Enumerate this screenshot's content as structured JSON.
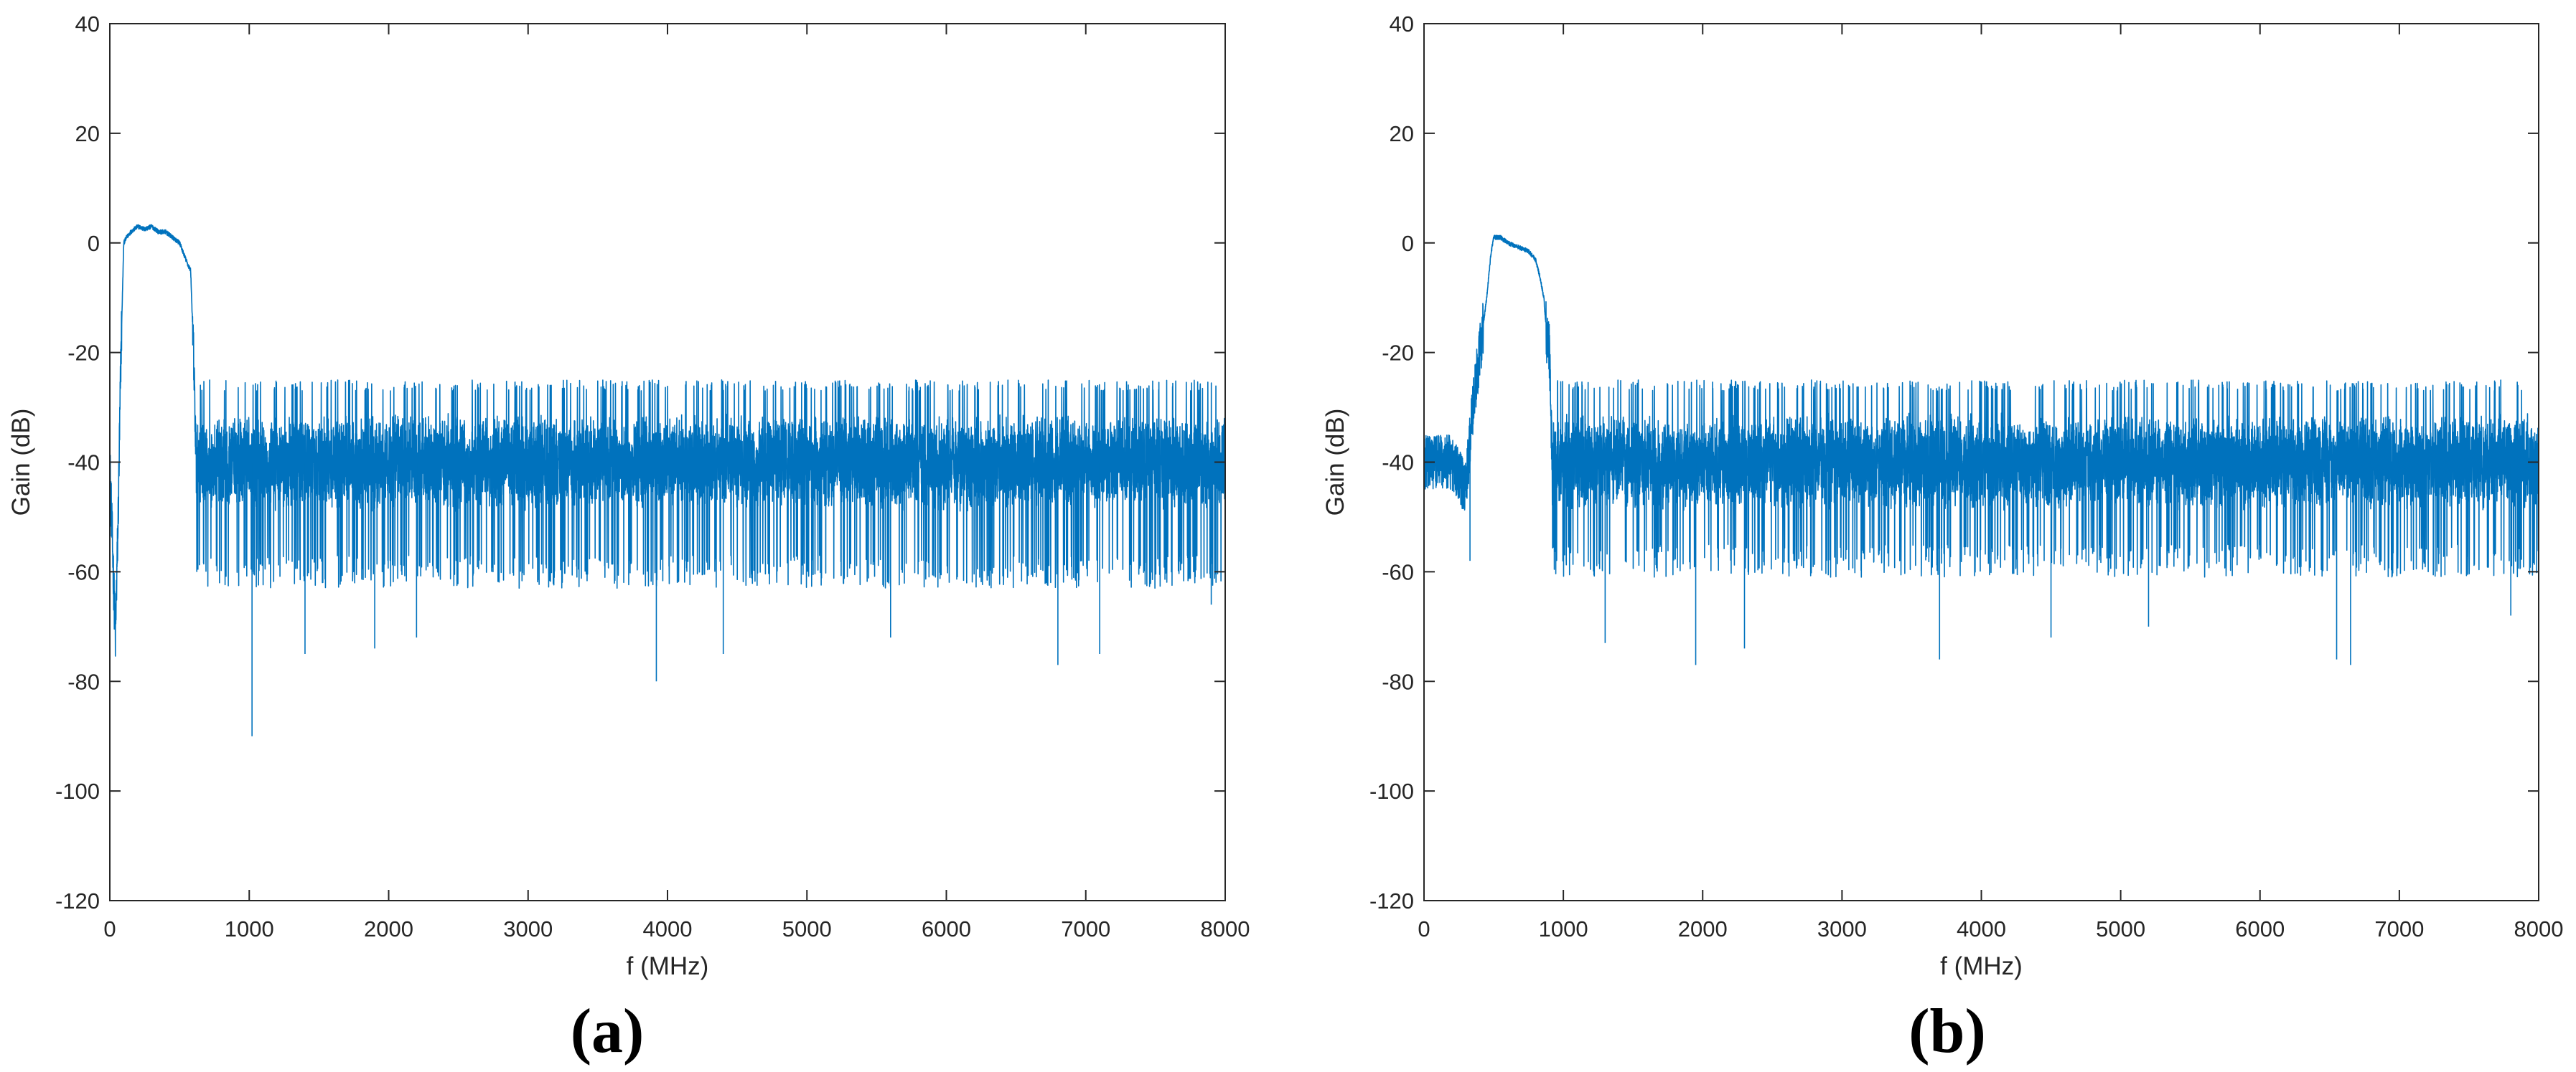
{
  "panels": [
    {
      "label": "(a)"
    },
    {
      "label": "(b)"
    }
  ],
  "chart_data": [
    {
      "type": "line",
      "title": "",
      "xlabel": "f (MHz)",
      "ylabel": "Gain (dB)",
      "xlim": [
        0,
        8000
      ],
      "ylim": [
        -120,
        40
      ],
      "xticks": [
        0,
        1000,
        2000,
        3000,
        4000,
        5000,
        6000,
        7000,
        8000
      ],
      "yticks": [
        40,
        20,
        0,
        -20,
        -40,
        -60,
        -80,
        -100,
        -120
      ],
      "grid": false,
      "line_color": "#0072BD",
      "series": [
        {
          "x": [
            0,
            40,
            60,
            80,
            100,
            120,
            150,
            200,
            250,
            300,
            350,
            400,
            450,
            500,
            530,
            560,
            580,
            600,
            620,
            700,
            1000,
            1400,
            1900,
            2200,
            3000,
            3900,
            4400,
            5000,
            5600,
            6000,
            6800,
            7100,
            7600,
            8000
          ],
          "y": [
            -40,
            -72,
            -50,
            -20,
            0,
            1,
            2,
            3,
            2.5,
            3,
            2,
            2,
            1,
            0,
            -2,
            -4,
            -5,
            -20,
            -40,
            -38,
            -40,
            -40,
            -40,
            -40,
            -40,
            -40,
            -40,
            -40,
            -40,
            -40,
            -40,
            -40,
            -40,
            -40
          ]
        }
      ],
      "noise_floor": {
        "x_start": 620,
        "x_end": 8000,
        "center": -40,
        "upper": -27,
        "lower": -60
      },
      "notable_dips": [
        {
          "x": 40,
          "y": -72
        },
        {
          "x": 1020,
          "y": -90
        },
        {
          "x": 1400,
          "y": -75
        },
        {
          "x": 1900,
          "y": -74
        },
        {
          "x": 2200,
          "y": -72
        },
        {
          "x": 3920,
          "y": -80
        },
        {
          "x": 4400,
          "y": -75
        },
        {
          "x": 5600,
          "y": -72
        },
        {
          "x": 6800,
          "y": -77
        },
        {
          "x": 7100,
          "y": -75
        },
        {
          "x": 7900,
          "y": -66
        }
      ]
    },
    {
      "type": "line",
      "title": "",
      "xlabel": "f (MHz)",
      "ylabel": "Gain (dB)",
      "xlim": [
        0,
        8000
      ],
      "ylim": [
        -120,
        40
      ],
      "xticks": [
        0,
        1000,
        2000,
        3000,
        4000,
        5000,
        6000,
        7000,
        8000
      ],
      "yticks": [
        40,
        20,
        0,
        -20,
        -40,
        -60,
        -80,
        -100,
        -120
      ],
      "grid": false,
      "line_color": "#0072BD",
      "series": [
        {
          "x": [
            0,
            200,
            300,
            350,
            400,
            450,
            480,
            500,
            550,
            600,
            650,
            700,
            750,
            800,
            830,
            860,
            880,
            900,
            920,
            1000,
            1400,
            2000,
            3000,
            4000,
            5000,
            6000,
            7000,
            8000
          ],
          "y": [
            -40,
            -40,
            -45,
            -30,
            -20,
            -10,
            -2,
            1,
            1,
            0,
            -0.5,
            -1,
            -1.5,
            -3,
            -6,
            -10,
            -17,
            -20,
            -40,
            -38,
            -40,
            -40,
            -40,
            -40,
            -40,
            -40,
            -40,
            -40
          ]
        }
      ],
      "noise_floor": {
        "x_start": 920,
        "x_end": 8000,
        "center": -40,
        "upper": -27,
        "lower": -58
      },
      "notable_dips": [
        {
          "x": 330,
          "y": -58
        },
        {
          "x": 1300,
          "y": -73
        },
        {
          "x": 1950,
          "y": -77
        },
        {
          "x": 2300,
          "y": -74
        },
        {
          "x": 3700,
          "y": -76
        },
        {
          "x": 4500,
          "y": -72
        },
        {
          "x": 5200,
          "y": -70
        },
        {
          "x": 6550,
          "y": -76
        },
        {
          "x": 6650,
          "y": -77
        },
        {
          "x": 7800,
          "y": -68
        }
      ]
    }
  ]
}
